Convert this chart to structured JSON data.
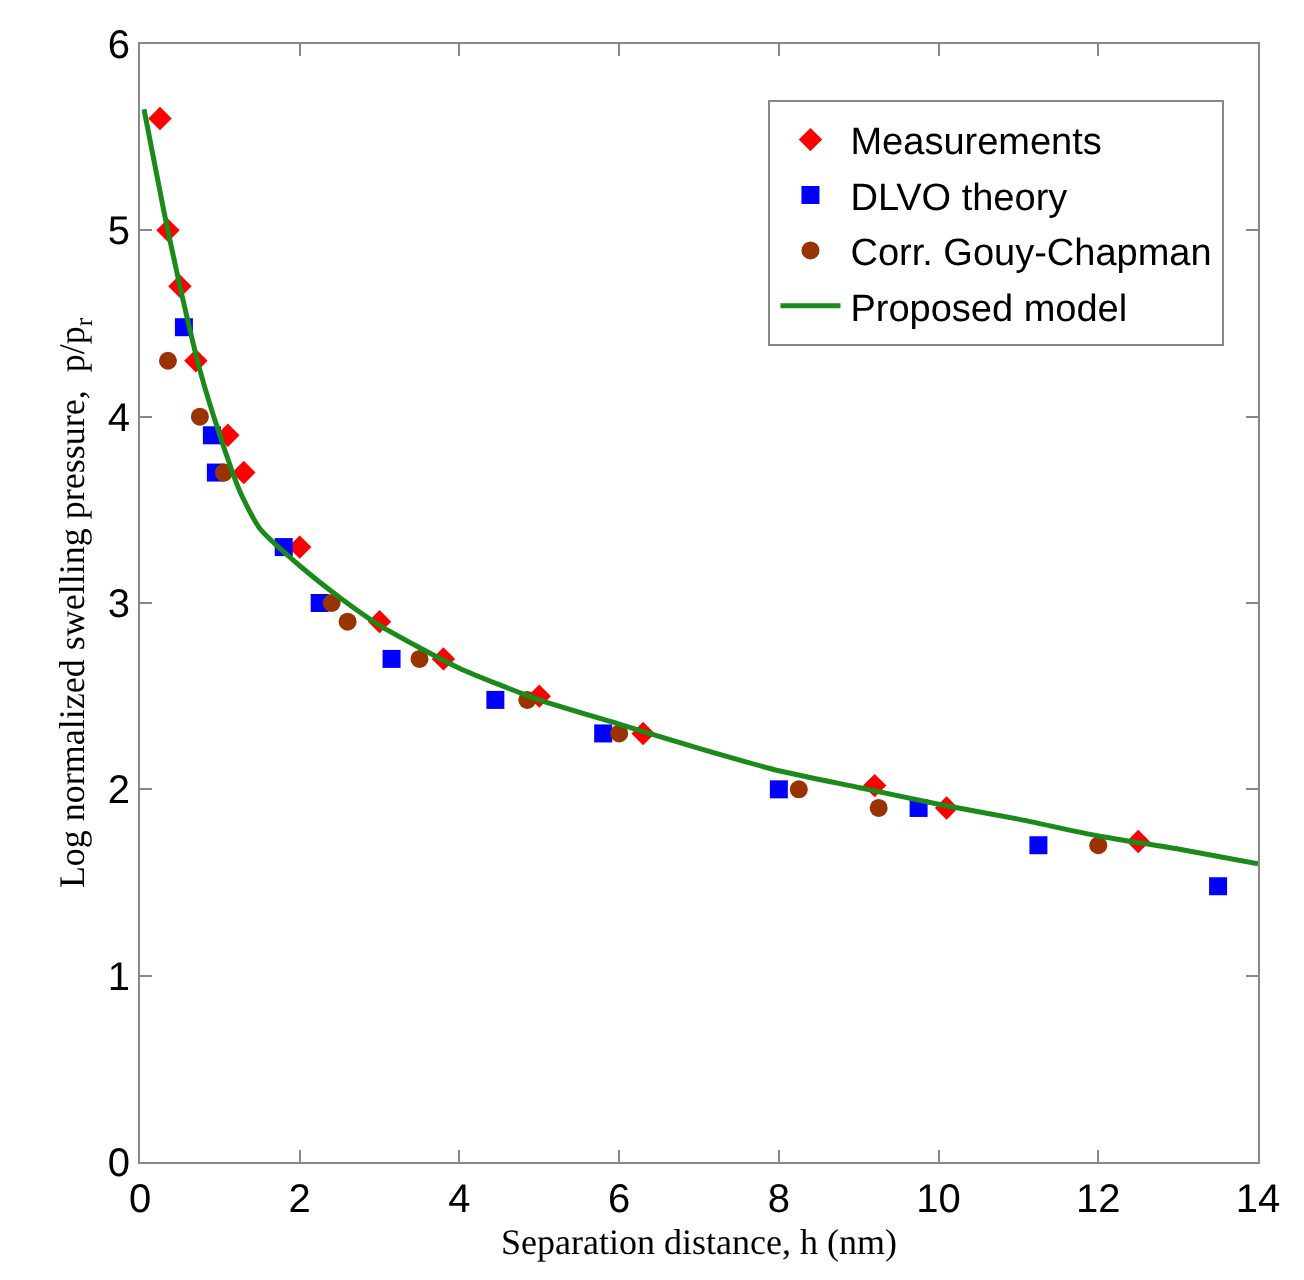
{
  "chart_data": {
    "type": "scatter",
    "xlabel": "Separation distance, h (nm)",
    "ylabel": "Log normalized swelling pressure,  p/p$_{r}$",
    "xlim": [
      0,
      14
    ],
    "ylim": [
      0,
      6
    ],
    "xticks": [
      0,
      2,
      4,
      6,
      8,
      10,
      12,
      14
    ],
    "yticks": [
      0,
      1,
      2,
      3,
      4,
      5,
      6
    ],
    "legend": "top right",
    "series": [
      {
        "name": "Measurements",
        "color": "#ff0000",
        "marker": "diamond",
        "x": [
          0.25,
          0.35,
          0.5,
          0.7,
          1.1,
          1.3,
          2.0,
          3.0,
          3.8,
          5.0,
          6.3,
          9.2,
          10.1,
          12.5
        ],
        "values": [
          5.6,
          5.0,
          4.7,
          4.3,
          3.9,
          3.7,
          3.3,
          2.9,
          2.7,
          2.5,
          2.3,
          2.02,
          1.9,
          1.72
        ]
      },
      {
        "name": "DLVO theory",
        "color": "#0000ff",
        "marker": "square",
        "x": [
          0.55,
          0.9,
          0.95,
          1.8,
          2.25,
          3.15,
          4.45,
          5.8,
          8.0,
          9.75,
          11.25,
          13.5
        ],
        "values": [
          4.48,
          3.9,
          3.7,
          3.3,
          3.0,
          2.7,
          2.48,
          2.3,
          2.0,
          1.9,
          1.7,
          1.48
        ]
      },
      {
        "name": "Corr. Gouy-Chapman",
        "color": "#993300",
        "marker": "circle",
        "x": [
          0.35,
          0.75,
          1.05,
          2.4,
          2.6,
          3.5,
          4.85,
          6.0,
          8.25,
          9.25,
          12.0
        ],
        "values": [
          4.3,
          4.0,
          3.7,
          3.0,
          2.9,
          2.7,
          2.48,
          2.3,
          2.0,
          1.9,
          1.7
        ]
      },
      {
        "name": "Proposed model",
        "type": "line",
        "color": "#1a8a1a",
        "marker": "none",
        "line_style": "solid",
        "x": [
          0.05,
          0.3,
          0.5,
          0.75,
          1.0,
          1.25,
          1.5,
          2,
          2.5,
          3,
          4,
          5,
          6,
          7,
          8,
          9,
          10,
          11,
          12,
          13,
          14
        ],
        "values": [
          5.65,
          5.1,
          4.7,
          4.25,
          3.9,
          3.6,
          3.4,
          3.2,
          3.03,
          2.88,
          2.65,
          2.48,
          2.35,
          2.22,
          2.1,
          2.01,
          1.92,
          1.84,
          1.75,
          1.68,
          1.6
        ]
      }
    ]
  }
}
